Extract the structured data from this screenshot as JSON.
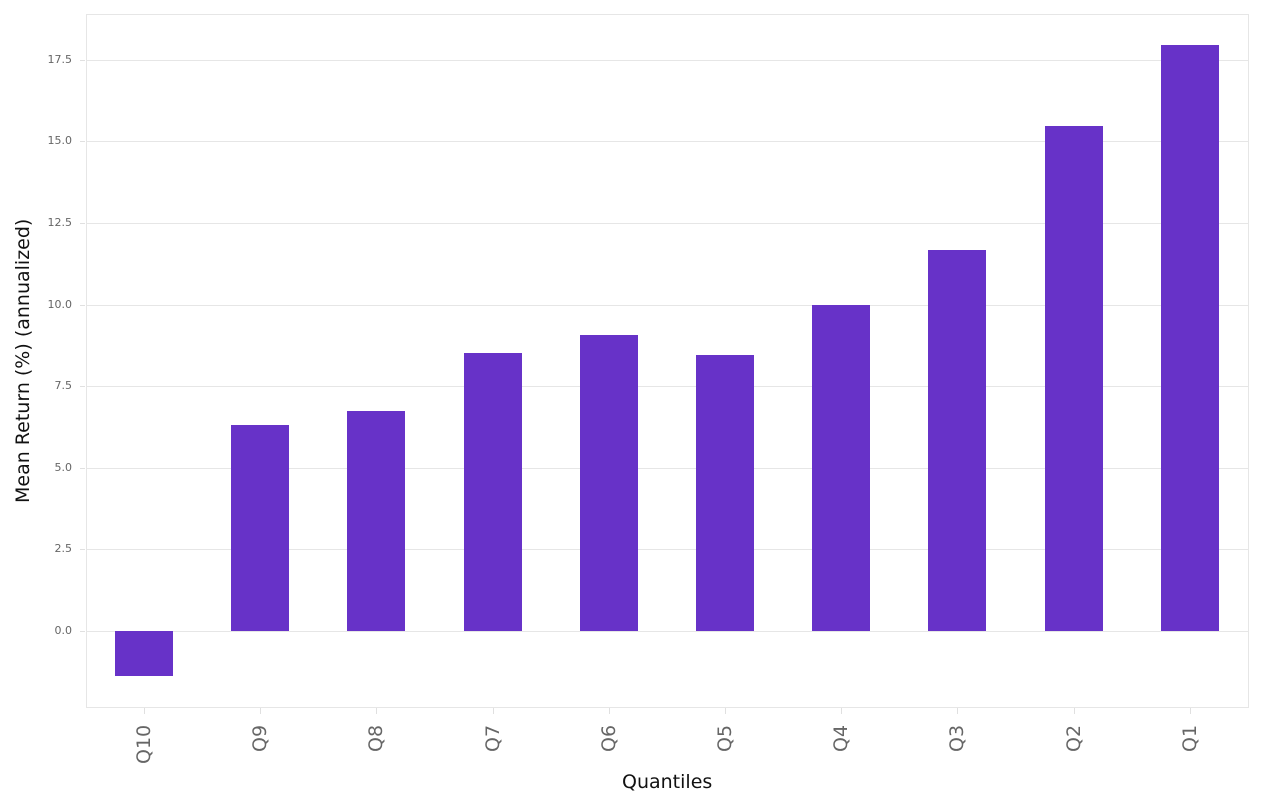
{
  "chart_data": {
    "type": "bar",
    "title": "",
    "xlabel": "Quantiles",
    "ylabel": "Mean Return (%) (annualized)",
    "categories": [
      "Q10",
      "Q9",
      "Q8",
      "Q7",
      "Q6",
      "Q5",
      "Q4",
      "Q3",
      "Q2",
      "Q1"
    ],
    "values": [
      -1.37,
      6.32,
      6.75,
      8.5,
      9.08,
      8.44,
      9.97,
      11.66,
      15.46,
      17.94
    ],
    "yticks": [
      0.0,
      2.5,
      5.0,
      7.5,
      10.0,
      12.5,
      15.0,
      17.5
    ],
    "ytick_labels": [
      "0.0",
      "2.5",
      "5.0",
      "7.5",
      "10.0",
      "12.5",
      "15.0",
      "17.5"
    ],
    "ylim": [
      -2.33,
      18.9
    ],
    "grid": true,
    "legend": null,
    "bar_color": "#6732c8",
    "grid_color": "#e6e6e6",
    "tick_label_color": "#666666",
    "axis_title_color": "#111111",
    "xtick_rotation": -90
  }
}
